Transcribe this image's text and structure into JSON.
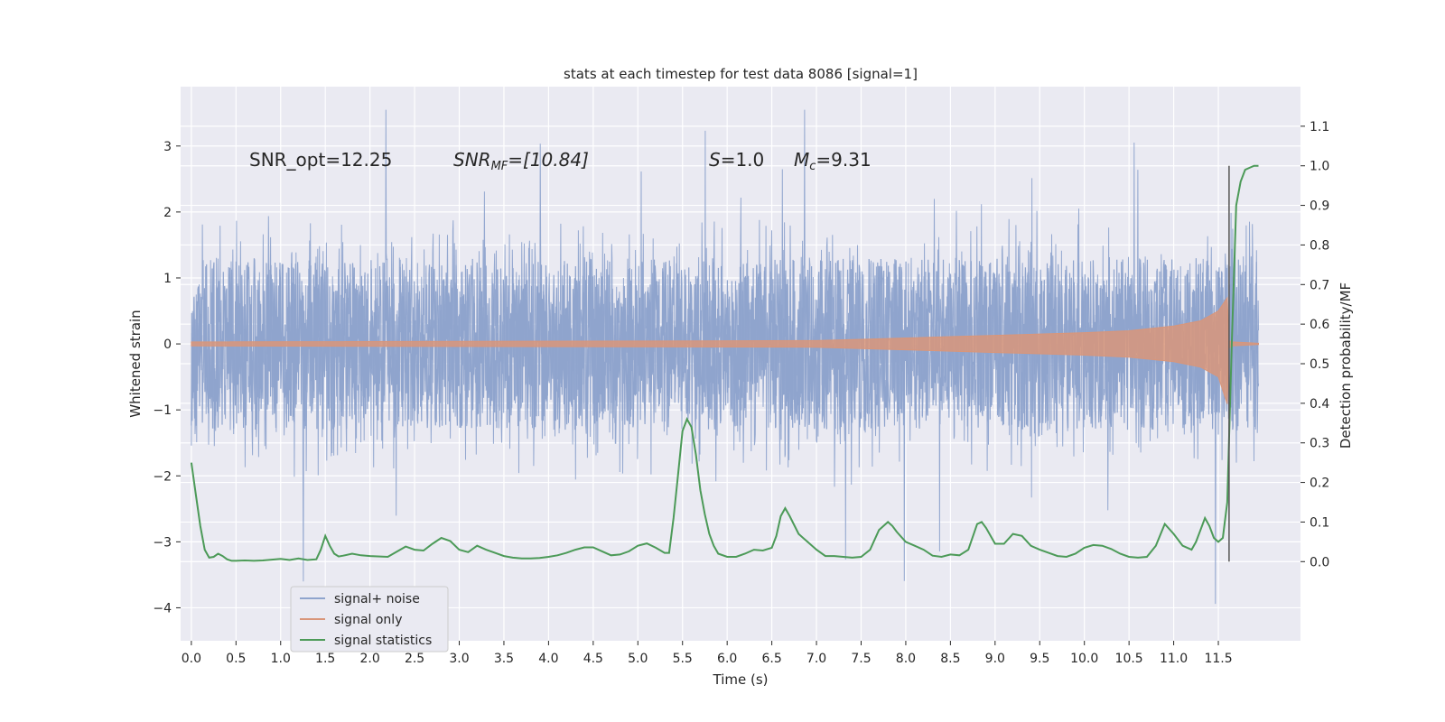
{
  "chart_data": {
    "type": "line",
    "title": "stats at each timestep for test data 8086 [signal=1]",
    "xlabel": "Time (s)",
    "ylabel_left": "Whitened strain",
    "ylabel_right": "Detection probability/MF",
    "xlim": [
      -0.12,
      12.42
    ],
    "ylim_left": [
      -4.5,
      3.9
    ],
    "ylim_right": [
      -0.2,
      1.2
    ],
    "x_ticks": [
      0.0,
      0.5,
      1.0,
      1.5,
      2.0,
      2.5,
      3.0,
      3.5,
      4.0,
      4.5,
      5.0,
      5.5,
      6.0,
      6.5,
      7.0,
      7.5,
      8.0,
      8.5,
      9.0,
      9.5,
      10.0,
      10.5,
      11.0,
      11.5
    ],
    "x_tick_labels": [
      "0.0",
      "0.5",
      "1.0",
      "1.5",
      "2.0",
      "2.5",
      "3.0",
      "3.5",
      "4.0",
      "4.5",
      "5.0",
      "5.5",
      "6.0",
      "6.5",
      "7.0",
      "7.5",
      "8.0",
      "8.5",
      "9.0",
      "9.5",
      "10.0",
      "10.5",
      "11.0",
      "11.5"
    ],
    "y_left_ticks": [
      -4,
      -3,
      -2,
      -1,
      0,
      1,
      2,
      3
    ],
    "y_left_tick_labels": [
      "−4",
      "−3",
      "−2",
      "−1",
      "0",
      "1",
      "2",
      "3"
    ],
    "y_right_ticks": [
      0.0,
      0.1,
      0.2,
      0.3,
      0.4,
      0.5,
      0.6,
      0.7,
      0.8,
      0.9,
      1.0,
      1.1
    ],
    "y_right_tick_labels": [
      "0.0",
      "0.1",
      "0.2",
      "0.3",
      "0.4",
      "0.5",
      "0.6",
      "0.7",
      "0.8",
      "0.9",
      "1.0",
      "1.1"
    ],
    "grid": true,
    "legend_position": "lower-left",
    "annotations": {
      "snr_opt": "SNR_opt=12.25",
      "snr_mf_main": "SNR",
      "snr_mf_sub": "MF",
      "snr_mf_value": "=[10.84]",
      "s_symbol": "S",
      "s_value": "=1.0",
      "mc_symbol": "M",
      "mc_sub": "c",
      "mc_value": "=9.31"
    },
    "series": [
      {
        "name": "signal+ noise",
        "axis": "left",
        "color": "#8fa4cd",
        "description_range": [
          -4.1,
          3.55
        ]
      },
      {
        "name": "signal only",
        "axis": "left",
        "color": "#d9967a",
        "envelope_x": [
          0.0,
          7.0,
          7.5,
          8.0,
          8.5,
          9.0,
          9.5,
          10.0,
          10.5,
          11.0,
          11.3,
          11.5,
          11.6,
          11.62,
          11.65,
          11.95
        ],
        "envelope_y": [
          0.03,
          0.05,
          0.07,
          0.09,
          0.11,
          0.13,
          0.15,
          0.17,
          0.2,
          0.27,
          0.35,
          0.5,
          0.7,
          0.05,
          0.03,
          0.01
        ]
      },
      {
        "name": "signal statistics",
        "axis": "right",
        "color": "#4c9a58",
        "x": [
          0.0,
          0.05,
          0.1,
          0.15,
          0.2,
          0.25,
          0.3,
          0.35,
          0.4,
          0.45,
          0.5,
          0.6,
          0.7,
          0.8,
          0.9,
          1.0,
          1.1,
          1.2,
          1.3,
          1.4,
          1.45,
          1.5,
          1.55,
          1.6,
          1.65,
          1.7,
          1.8,
          1.9,
          2.0,
          2.2,
          2.4,
          2.5,
          2.6,
          2.7,
          2.8,
          2.9,
          3.0,
          3.1,
          3.2,
          3.3,
          3.4,
          3.5,
          3.6,
          3.7,
          3.8,
          3.9,
          4.0,
          4.1,
          4.2,
          4.3,
          4.4,
          4.5,
          4.6,
          4.7,
          4.8,
          4.9,
          5.0,
          5.1,
          5.2,
          5.3,
          5.35,
          5.4,
          5.45,
          5.5,
          5.55,
          5.6,
          5.65,
          5.7,
          5.75,
          5.8,
          5.85,
          5.9,
          6.0,
          6.1,
          6.2,
          6.3,
          6.4,
          6.5,
          6.55,
          6.6,
          6.65,
          6.7,
          6.8,
          6.9,
          7.0,
          7.1,
          7.2,
          7.3,
          7.4,
          7.5,
          7.6,
          7.7,
          7.8,
          7.85,
          7.9,
          8.0,
          8.1,
          8.2,
          8.3,
          8.4,
          8.5,
          8.6,
          8.7,
          8.8,
          8.85,
          8.9,
          9.0,
          9.1,
          9.2,
          9.3,
          9.4,
          9.5,
          9.6,
          9.7,
          9.8,
          9.9,
          10.0,
          10.1,
          10.2,
          10.3,
          10.4,
          10.5,
          10.6,
          10.7,
          10.8,
          10.9,
          11.0,
          11.1,
          11.2,
          11.25,
          11.3,
          11.35,
          11.4,
          11.45,
          11.5,
          11.55,
          11.6,
          11.65,
          11.7,
          11.75,
          11.8,
          11.85,
          11.9,
          11.95
        ],
        "y": [
          0.25,
          0.17,
          0.09,
          0.03,
          0.01,
          0.012,
          0.02,
          0.014,
          0.006,
          0.002,
          0.002,
          0.003,
          0.002,
          0.003,
          0.005,
          0.007,
          0.004,
          0.008,
          0.004,
          0.006,
          0.03,
          0.065,
          0.04,
          0.02,
          0.013,
          0.015,
          0.02,
          0.016,
          0.014,
          0.012,
          0.038,
          0.03,
          0.028,
          0.045,
          0.06,
          0.052,
          0.03,
          0.024,
          0.04,
          0.03,
          0.022,
          0.014,
          0.01,
          0.008,
          0.008,
          0.009,
          0.012,
          0.016,
          0.022,
          0.03,
          0.036,
          0.036,
          0.026,
          0.016,
          0.018,
          0.026,
          0.04,
          0.046,
          0.035,
          0.022,
          0.022,
          0.11,
          0.22,
          0.33,
          0.36,
          0.34,
          0.27,
          0.18,
          0.12,
          0.07,
          0.04,
          0.02,
          0.012,
          0.012,
          0.02,
          0.03,
          0.028,
          0.035,
          0.065,
          0.115,
          0.135,
          0.115,
          0.07,
          0.05,
          0.03,
          0.014,
          0.014,
          0.012,
          0.01,
          0.012,
          0.03,
          0.08,
          0.1,
          0.09,
          0.075,
          0.05,
          0.04,
          0.03,
          0.015,
          0.012,
          0.018,
          0.016,
          0.03,
          0.095,
          0.1,
          0.085,
          0.045,
          0.045,
          0.07,
          0.065,
          0.04,
          0.03,
          0.022,
          0.014,
          0.012,
          0.02,
          0.035,
          0.042,
          0.04,
          0.032,
          0.02,
          0.012,
          0.01,
          0.012,
          0.04,
          0.095,
          0.07,
          0.04,
          0.03,
          0.05,
          0.08,
          0.11,
          0.09,
          0.06,
          0.05,
          0.06,
          0.15,
          0.55,
          0.9,
          0.96,
          0.99,
          0.995,
          1.0,
          1.0
        ]
      }
    ]
  }
}
